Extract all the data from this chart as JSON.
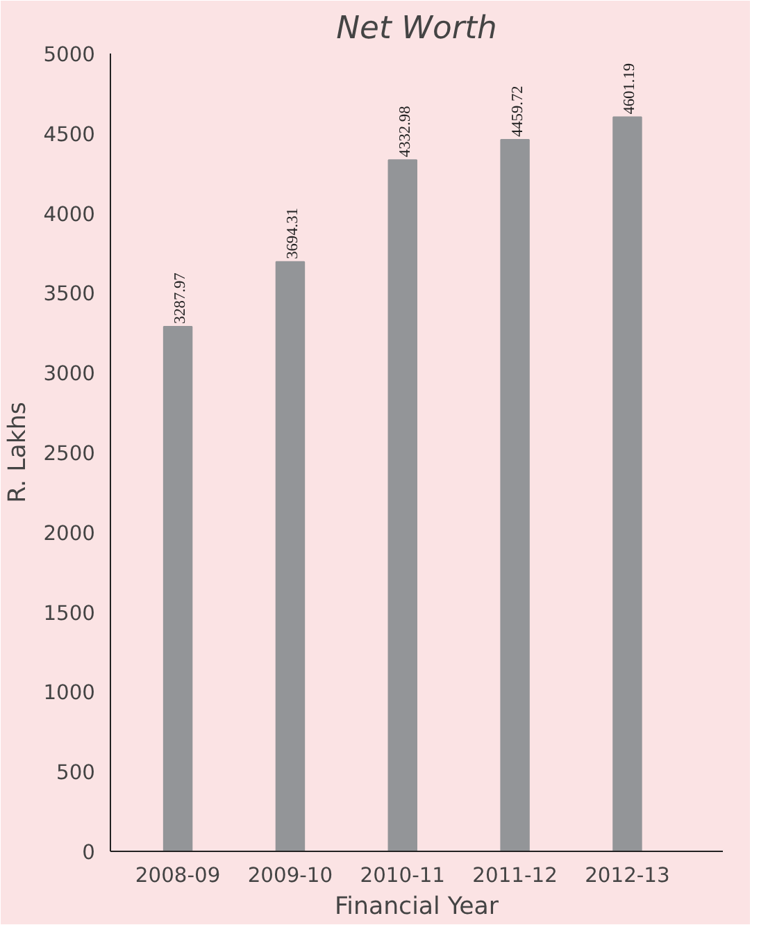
{
  "chart_data": {
    "type": "bar",
    "title": "Net Worth",
    "xlabel": "Financial Year",
    "ylabel": "R. Lakhs",
    "categories": [
      "2008-09",
      "2009-10",
      "2010-11",
      "2011-12",
      "2012-13"
    ],
    "values": [
      3287.97,
      3694.31,
      4332.98,
      4459.72,
      4601.19
    ],
    "color": "#939598",
    "ylim": [
      0,
      5000
    ],
    "yticks": [
      0,
      500,
      1000,
      1500,
      2000,
      2500,
      3000,
      3500,
      4000,
      4500,
      5000
    ],
    "data_labels": true,
    "grid": false
  }
}
